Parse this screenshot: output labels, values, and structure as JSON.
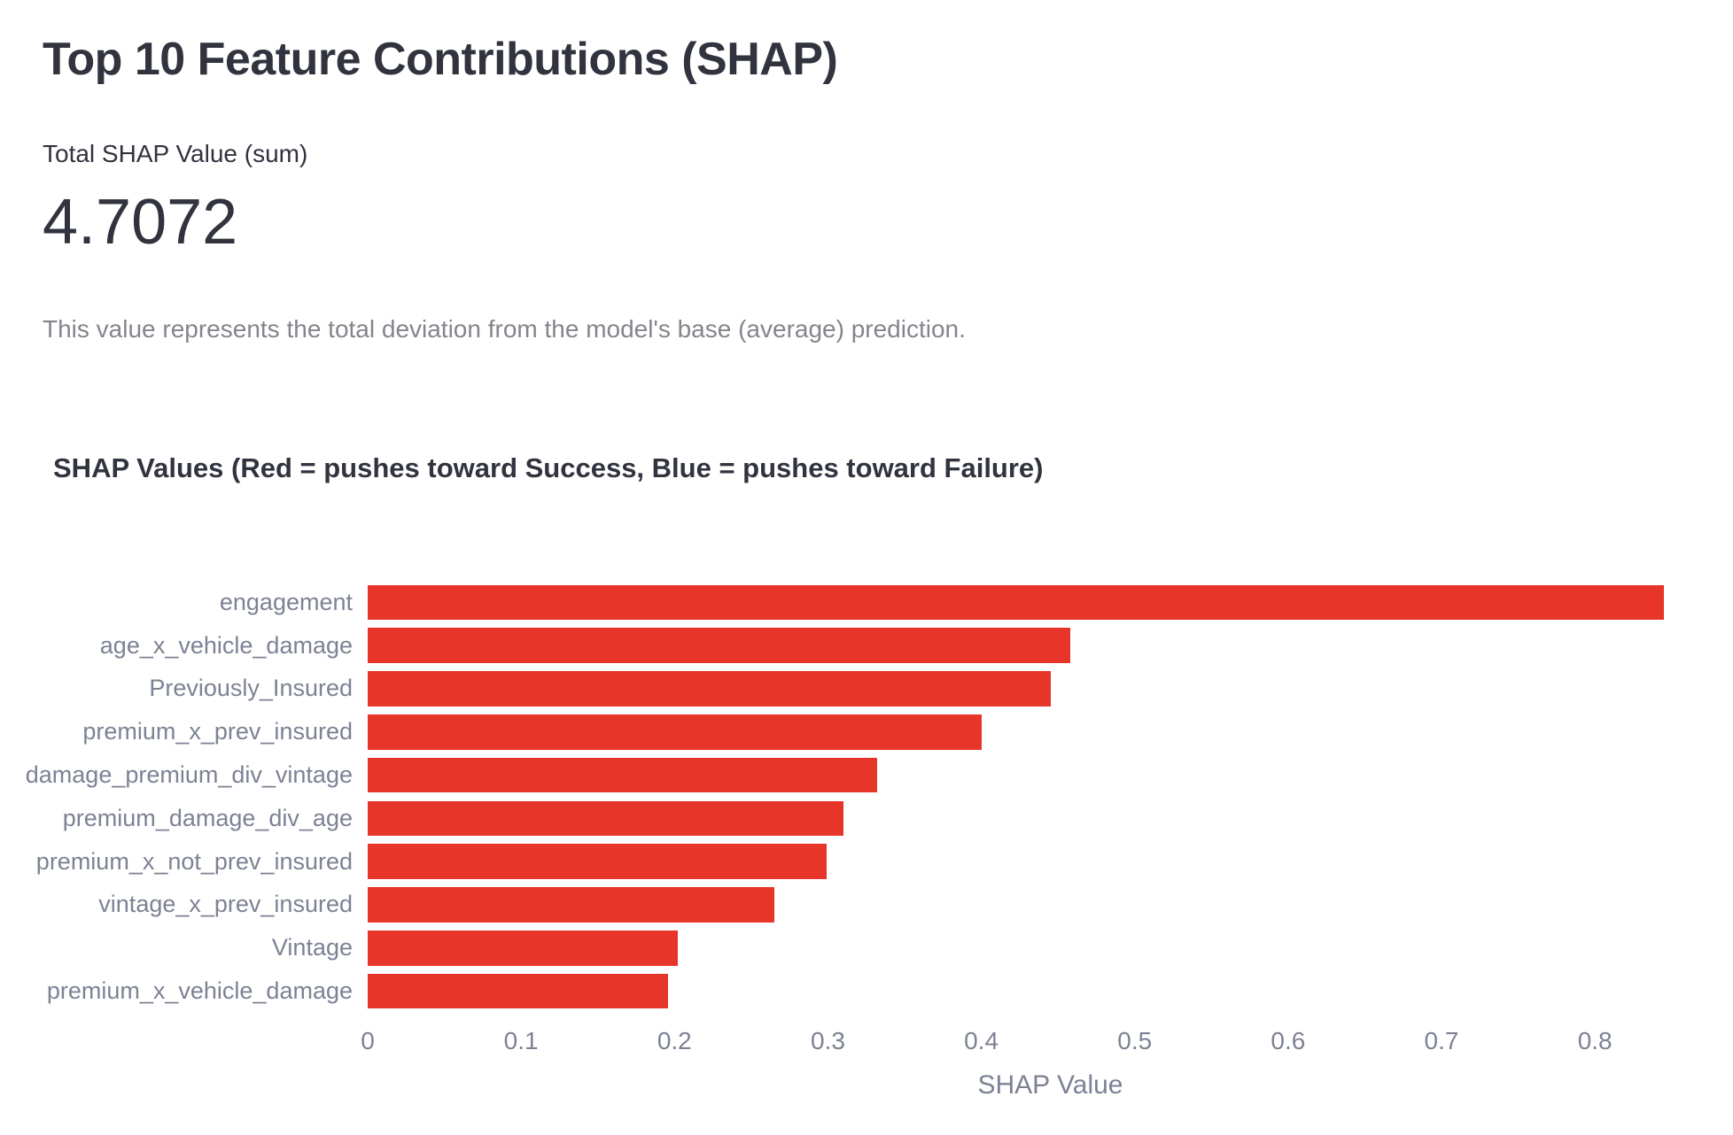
{
  "page": {
    "title": "Top 10 Feature Contributions (SHAP)"
  },
  "metric": {
    "label": "Total SHAP Value (sum)",
    "value": "4.7072"
  },
  "caption": "This value represents the total deviation from the model's base (average) prediction.",
  "chart_data": {
    "type": "bar",
    "orientation": "horizontal",
    "title": "SHAP Values (Red = pushes toward Success, Blue = pushes toward Failure)",
    "xlabel": "SHAP Value",
    "categories": [
      "engagement",
      "age_x_vehicle_damage",
      "Previously_Insured",
      "premium_x_prev_insured",
      "damage_premium_div_vintage",
      "premium_damage_div_age",
      "premium_x_not_prev_insured",
      "vintage_x_prev_insured",
      "Vintage",
      "premium_x_vehicle_damage"
    ],
    "values": [
      0.845,
      0.458,
      0.445,
      0.4,
      0.332,
      0.31,
      0.299,
      0.265,
      0.202,
      0.196
    ],
    "x_tick_labels": [
      "0",
      "0.1",
      "0.2",
      "0.3",
      "0.4",
      "0.5",
      "0.6",
      "0.7",
      "0.8"
    ],
    "x_tick_values": [
      0,
      0.1,
      0.2,
      0.3,
      0.4,
      0.5,
      0.6,
      0.7,
      0.8
    ],
    "xlim": [
      0,
      0.89
    ],
    "grid": false,
    "legend": "none",
    "bar_color": "#e8352a",
    "colors": {
      "text": "#31333f",
      "muted_text": "#84868f",
      "axis_text": "#7d8294",
      "background": "#ffffff"
    }
  }
}
